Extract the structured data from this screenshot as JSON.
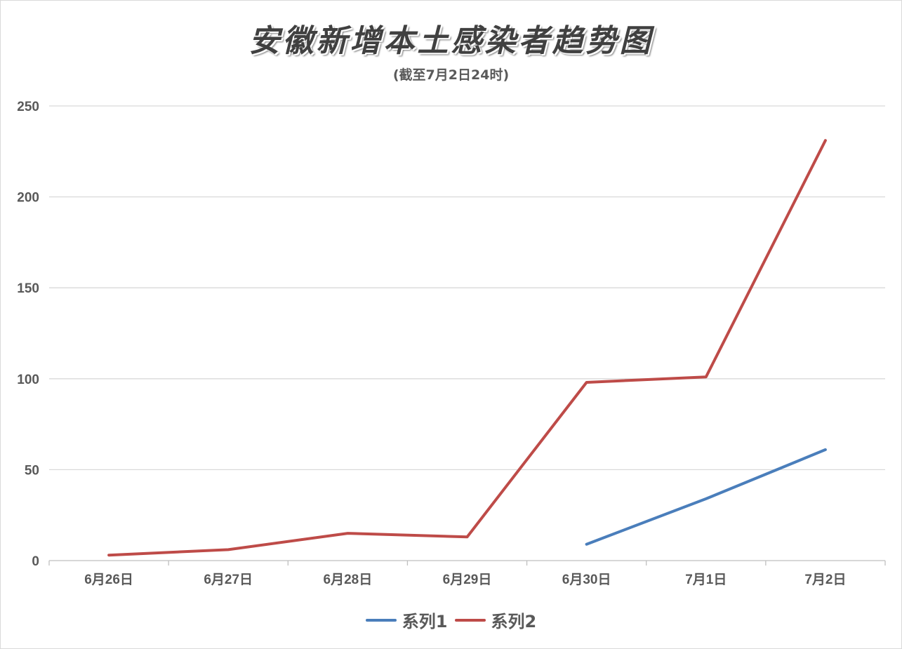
{
  "chart_data": {
    "type": "line",
    "title": "安徽新增本土感染者趋势图",
    "subtitle": "(截至7月2日24时)",
    "categories": [
      "6月26日",
      "6月27日",
      "6月28日",
      "6月29日",
      "6月30日",
      "7月1日",
      "7月2日"
    ],
    "ylim": [
      0,
      250
    ],
    "yticks": [
      0,
      50,
      100,
      150,
      200,
      250
    ],
    "grid": true,
    "legend_position": "bottom",
    "series": [
      {
        "name": "系列1",
        "color": "#4a7ebb",
        "values": [
          null,
          null,
          null,
          null,
          9,
          34,
          61
        ]
      },
      {
        "name": "系列2",
        "color": "#be4b48",
        "values": [
          3,
          6,
          15,
          13,
          98,
          101,
          231
        ]
      }
    ]
  }
}
